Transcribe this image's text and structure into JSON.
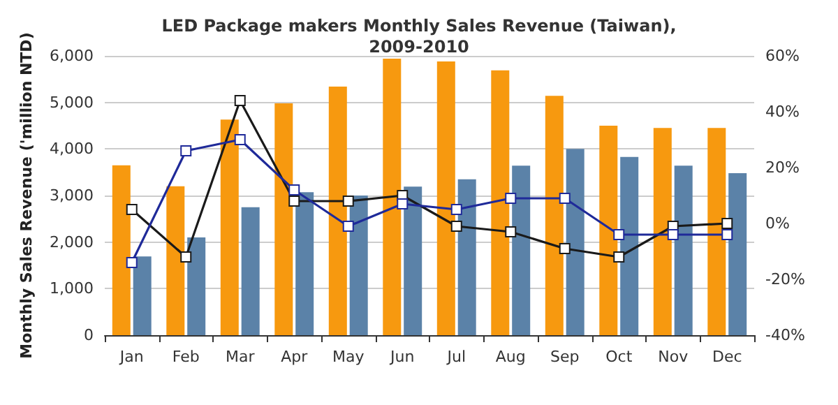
{
  "chart_data": {
    "type": "bar",
    "title": "LED Package makers Monthly Sales Revenue (Taiwan),\n2009-2010",
    "ylabel": "Monthly Sales Revenue ('million NTD)",
    "categories": [
      "Jan",
      "Feb",
      "Mar",
      "Apr",
      "May",
      "Jun",
      "Jul",
      "Aug",
      "Sep",
      "Oct",
      "Nov",
      "Dec"
    ],
    "series": [
      {
        "color": "#f7990f",
        "values": [
          3650,
          3200,
          4630,
          4980,
          5340,
          5940,
          5880,
          5690,
          5140,
          4500,
          4450,
          4450
        ]
      },
      {
        "color": "#5b82a8",
        "values": [
          1690,
          2100,
          2750,
          3070,
          3000,
          3190,
          3350,
          3640,
          4000,
          3830,
          3640,
          3480
        ]
      },
      {
        "type": "line",
        "axis": "y2",
        "color": "#1a1a1a",
        "values": [
          5,
          -12,
          44,
          8,
          8,
          10,
          -1,
          -3,
          -9,
          -12,
          -1,
          0
        ]
      },
      {
        "type": "line",
        "axis": "y2",
        "color": "#1f2a99",
        "values": [
          -14,
          26,
          30,
          12,
          -1,
          7,
          5,
          9,
          9,
          -4,
          -4,
          -4
        ]
      }
    ],
    "ylim": [
      0,
      6000
    ],
    "yticks": [
      {
        "value": 0,
        "label": "0"
      },
      {
        "value": 1000,
        "label": "1,000"
      },
      {
        "value": 2000,
        "label": "2,000"
      },
      {
        "value": 3000,
        "label": "3,000"
      },
      {
        "value": 4000,
        "label": "4,000"
      },
      {
        "value": 5000,
        "label": "5,000"
      },
      {
        "value": 6000,
        "label": "6,000"
      }
    ],
    "y2lim": [
      -40,
      60
    ],
    "y2ticks": [
      {
        "value": -40,
        "label": "-40%"
      },
      {
        "value": -20,
        "label": "-20%"
      },
      {
        "value": 0,
        "label": "0%"
      },
      {
        "value": 20,
        "label": "20%"
      },
      {
        "value": 40,
        "label": "40%"
      },
      {
        "value": 60,
        "label": "60%"
      }
    ],
    "grid": "y",
    "marker": "square",
    "line_style": "solid"
  }
}
